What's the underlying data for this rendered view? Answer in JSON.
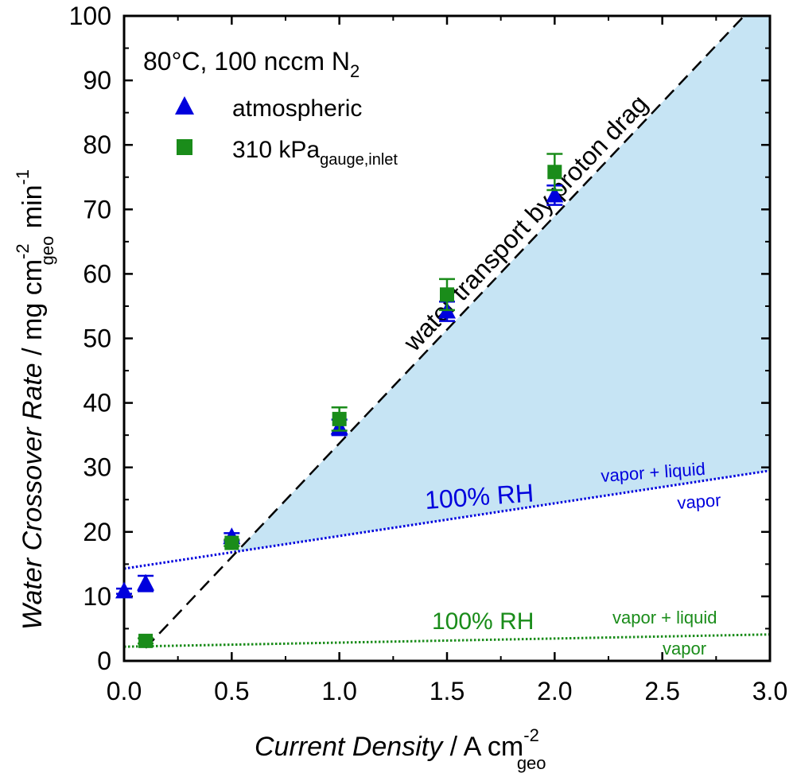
{
  "chart_data": {
    "type": "scatter",
    "xlim": [
      0,
      3.0
    ],
    "ylim": [
      0,
      100
    ],
    "x_ticks": [
      0.0,
      0.5,
      1.0,
      1.5,
      2.0,
      2.5,
      3.0
    ],
    "x_tick_labels": [
      "0.0",
      "0.5",
      "1.0",
      "1.5",
      "2.0",
      "2.5",
      "3.0"
    ],
    "y_ticks": [
      0,
      10,
      20,
      30,
      40,
      50,
      60,
      70,
      80,
      90,
      100
    ],
    "y_tick_labels": [
      "0",
      "10",
      "20",
      "30",
      "40",
      "50",
      "60",
      "70",
      "80",
      "90",
      "100"
    ],
    "xlabel": {
      "italic": "Current Density",
      "plain": " / A cm",
      "sup": "-2",
      "sub": "geo"
    },
    "ylabel": {
      "italic": "Water Crossover Rate",
      "plain1": " / mg cm",
      "sup1": "-2",
      "sub1": "geo",
      "plain2": " min",
      "sup2": "-1"
    },
    "grid": false,
    "legend": {
      "position": "top-left",
      "condition_main": "80°C, 100 nccm N",
      "condition_sub": "2",
      "entries": [
        {
          "label": "atmospheric",
          "sub": "",
          "marker": "triangle",
          "color": "#0000dd"
        },
        {
          "label": "310 kPa",
          "sub": "gauge,inlet",
          "marker": "square",
          "color": "#1a8c1a"
        }
      ]
    },
    "series": [
      {
        "name": "atmospheric",
        "color": "#0000dd",
        "marker": "triangle",
        "points": [
          {
            "x": 0.0,
            "y": 10.8,
            "err": 0.4
          },
          {
            "x": 0.1,
            "y": 12.0,
            "err": 1.2
          },
          {
            "x": 0.5,
            "y": 19.2,
            "err": 0.6
          },
          {
            "x": 1.0,
            "y": 36.2,
            "err": 1.2
          },
          {
            "x": 1.5,
            "y": 54.2,
            "err": 1.5
          },
          {
            "x": 2.0,
            "y": 72.2,
            "err": 1.5
          }
        ]
      },
      {
        "name": "310 kPa",
        "color": "#1a8c1a",
        "marker": "square",
        "points": [
          {
            "x": 0.1,
            "y": 3.1,
            "err": 0.4
          },
          {
            "x": 0.5,
            "y": 18.3,
            "err": 0.5
          },
          {
            "x": 1.0,
            "y": 37.5,
            "err": 1.8
          },
          {
            "x": 1.5,
            "y": 56.8,
            "err": 2.4
          },
          {
            "x": 2.0,
            "y": 75.8,
            "err": 2.8
          }
        ]
      }
    ],
    "lines": {
      "proton_drag": {
        "x1": 0.1,
        "y1": 2.0,
        "x2": 2.88,
        "y2": 100,
        "color": "#000000"
      },
      "rh_atmospheric": {
        "x1": 0,
        "y1": 14.3,
        "x2": 3.0,
        "y2": 29.5,
        "color": "#0000dd"
      },
      "rh_pressurized": {
        "x1": 0,
        "y1": 2.2,
        "x2": 3.0,
        "y2": 4.1,
        "color": "#1a8c1a"
      }
    },
    "shaded_region_color": "#c6e4f4",
    "annotations": {
      "proton_drag_label": "water transport by proton drag",
      "rh_label_blue": "100% RH",
      "vl_label_blue": "vapor + liquid",
      "v_label_blue": "vapor",
      "rh_label_green": "100% RH",
      "vl_label_green": "vapor + liquid",
      "v_label_green": "vapor"
    }
  }
}
